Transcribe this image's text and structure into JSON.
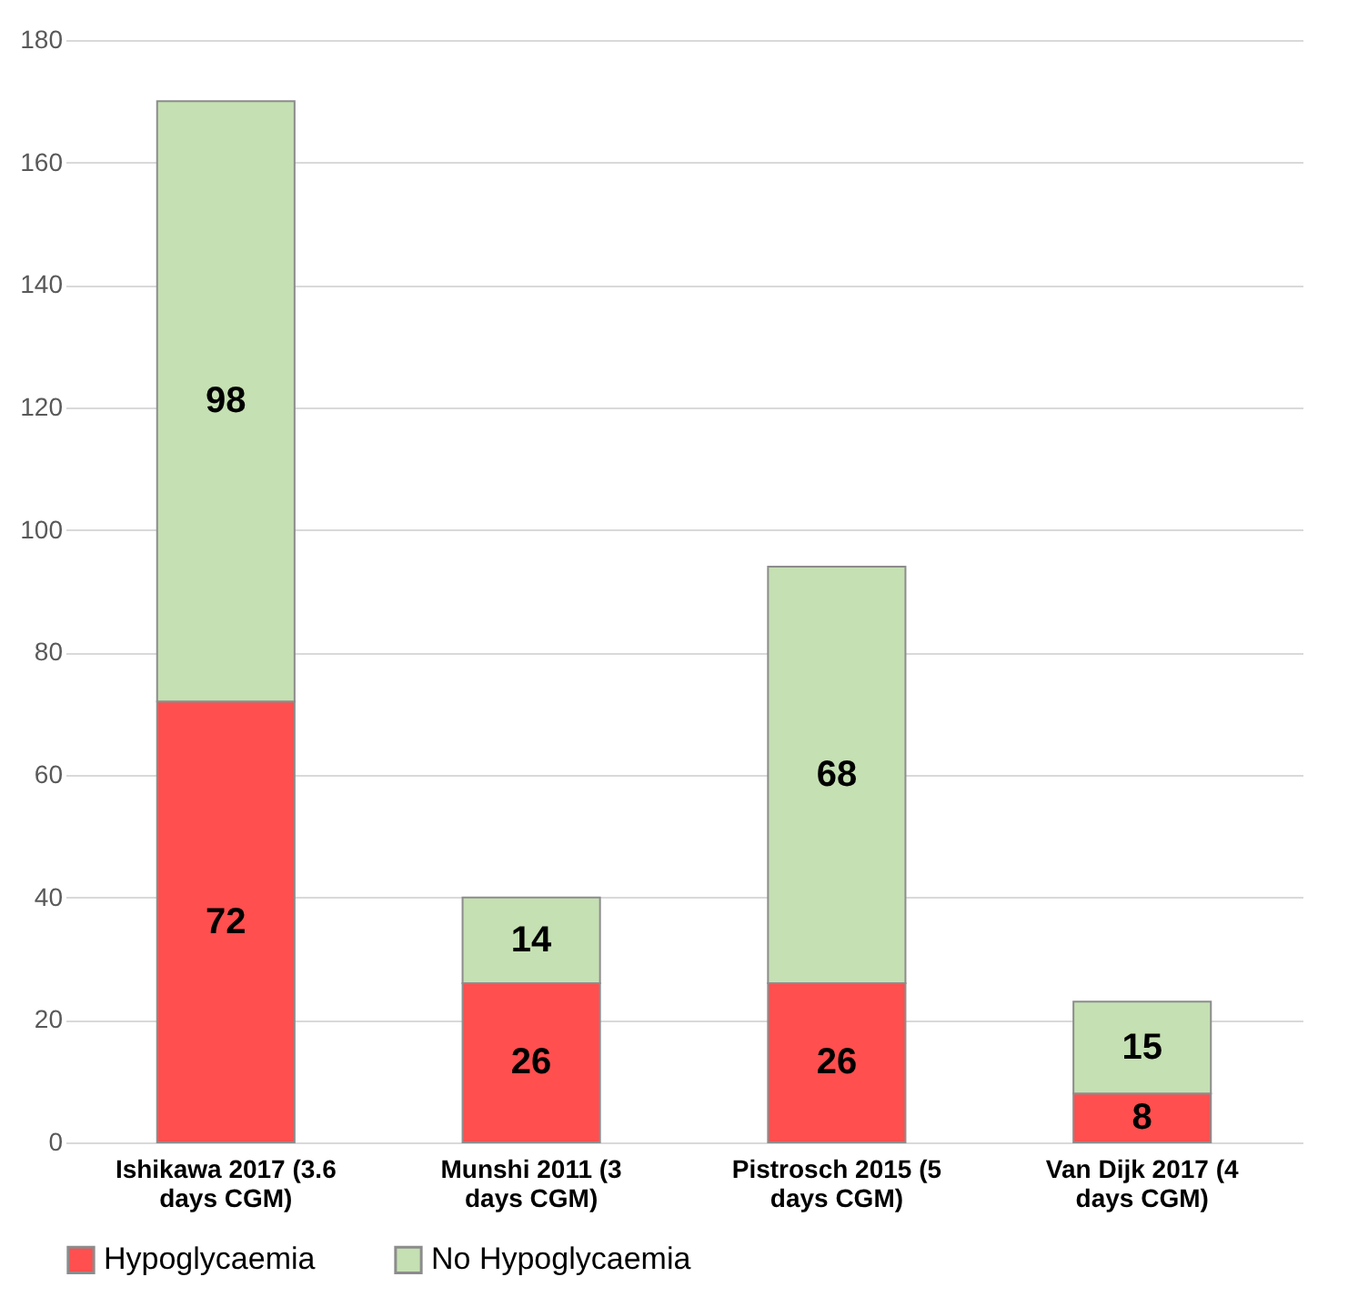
{
  "chart_data": {
    "type": "bar",
    "stacked": true,
    "categories": [
      "Ishikawa 2017 (3.6 days CGM)",
      "Munshi 2011 (3 days CGM)",
      "Pistrosch 2015 (5 days CGM)",
      "Van Dijk 2017 (4 days CGM)"
    ],
    "series": [
      {
        "name": "Hypoglycaemia",
        "color": "#ff4f4f",
        "values": [
          72,
          26,
          26,
          8
        ]
      },
      {
        "name": "No Hypoglycaemia",
        "color": "#c5e0b3",
        "values": [
          98,
          14,
          68,
          15
        ]
      }
    ],
    "ylim": [
      0,
      180
    ],
    "yticks": [
      0,
      20,
      40,
      60,
      80,
      100,
      120,
      140,
      160,
      180
    ],
    "grid": "y",
    "legend": "bottom",
    "data_labels": true
  }
}
